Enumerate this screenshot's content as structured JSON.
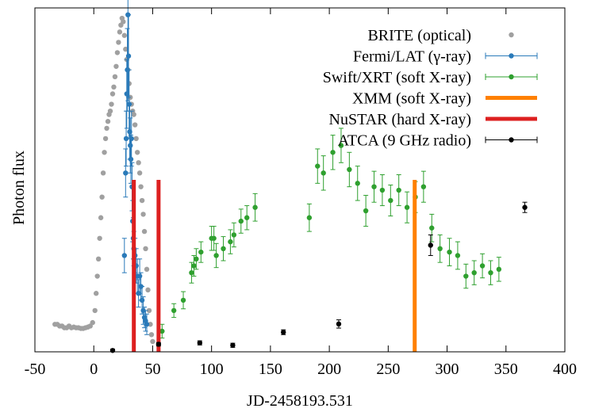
{
  "chart_data": {
    "type": "scatter",
    "xlabel": "JD-2458193.531",
    "ylabel": "Photon flux",
    "xlim": [
      -50,
      400
    ],
    "ylim": [
      0,
      1
    ],
    "xticks": [
      -50,
      0,
      50,
      100,
      150,
      200,
      250,
      300,
      350,
      400
    ],
    "yticks": [],
    "grid": false,
    "legend_position": "top-right",
    "series": [
      {
        "name": "BRITE (optical)",
        "kind": "points",
        "color": "#a0a0a0",
        "x": [
          -33,
          -31,
          -29,
          -27,
          -25,
          -23,
          -21,
          -19,
          -17,
          -15,
          -13,
          -11,
          -9,
          -7,
          -5,
          -3,
          -1,
          1,
          2,
          3,
          4,
          5,
          6,
          7,
          8,
          9,
          10,
          11,
          12,
          13,
          14,
          15,
          16,
          17,
          18,
          19,
          20,
          21,
          22,
          23,
          24,
          25,
          26,
          27,
          28,
          29,
          30,
          31,
          32,
          33,
          34,
          35,
          36,
          37,
          38,
          39,
          40,
          41,
          42,
          43,
          44,
          45,
          46,
          47,
          48,
          49,
          50
        ],
        "y": [
          0.08,
          0.08,
          0.075,
          0.075,
          0.07,
          0.07,
          0.075,
          0.07,
          0.072,
          0.07,
          0.07,
          0.068,
          0.068,
          0.07,
          0.072,
          0.075,
          0.085,
          0.12,
          0.17,
          0.22,
          0.27,
          0.33,
          0.39,
          0.45,
          0.52,
          0.58,
          0.62,
          0.65,
          0.67,
          0.69,
          0.7,
          0.72,
          0.75,
          0.77,
          0.8,
          0.83,
          0.87,
          0.9,
          0.93,
          0.95,
          0.97,
          0.96,
          0.92,
          0.88,
          0.85,
          0.82,
          0.78,
          0.74,
          0.72,
          0.7,
          0.69,
          0.66,
          0.62,
          0.58,
          0.55,
          0.52,
          0.48,
          0.44,
          0.4,
          0.35,
          0.3,
          0.24,
          0.18,
          0.12,
          0.08,
          0.05,
          0.03
        ]
      },
      {
        "name": "Fermi/LAT (γ-ray)",
        "kind": "errorbar",
        "color": "#2a7ab9",
        "x": [
          26,
          27,
          27.5,
          28,
          28.5,
          29,
          29.5,
          30,
          30.5,
          31,
          31.5,
          32,
          32.5,
          33,
          33.5,
          34,
          35,
          36,
          37,
          38,
          39,
          40,
          41,
          42,
          43,
          44,
          45
        ],
        "y": [
          0.28,
          0.52,
          0.62,
          0.75,
          0.82,
          0.98,
          0.86,
          0.72,
          0.64,
          0.6,
          0.56,
          0.62,
          0.48,
          0.38,
          0.33,
          0.3,
          0.28,
          0.25,
          0.22,
          0.17,
          0.22,
          0.19,
          0.15,
          0.12,
          0.1,
          0.09,
          0.08
        ],
        "yerr": [
          0.05,
          0.07,
          0.08,
          0.1,
          0.12,
          0.25,
          0.12,
          0.1,
          0.08,
          0.08,
          0.07,
          0.08,
          0.07,
          0.06,
          0.06,
          0.05,
          0.05,
          0.05,
          0.05,
          0.04,
          0.05,
          0.04,
          0.04,
          0.04,
          0.03,
          0.03,
          0.03
        ]
      },
      {
        "name": "Swift/XRT (soft X-ray)",
        "kind": "errorbar",
        "color": "#2fa02f",
        "x": [
          58,
          68,
          76,
          83,
          85,
          87,
          91,
          100,
          102,
          104,
          110,
          116,
          119,
          125,
          130,
          137,
          183,
          190,
          195,
          203,
          210,
          217,
          224,
          231,
          238,
          245,
          252,
          259,
          266,
          273,
          280,
          287,
          294,
          302,
          309,
          316,
          323,
          330,
          337,
          344
        ],
        "y": [
          0.06,
          0.12,
          0.15,
          0.23,
          0.25,
          0.27,
          0.29,
          0.33,
          0.33,
          0.28,
          0.3,
          0.32,
          0.34,
          0.38,
          0.39,
          0.42,
          0.39,
          0.54,
          0.52,
          0.58,
          0.6,
          0.53,
          0.49,
          0.41,
          0.48,
          0.47,
          0.44,
          0.47,
          0.42,
          0.45,
          0.48,
          0.36,
          0.3,
          0.29,
          0.28,
          0.22,
          0.23,
          0.25,
          0.23,
          0.24
        ],
        "yerr": [
          0.02,
          0.02,
          0.025,
          0.03,
          0.03,
          0.03,
          0.03,
          0.035,
          0.035,
          0.035,
          0.035,
          0.035,
          0.035,
          0.035,
          0.035,
          0.04,
          0.04,
          0.05,
          0.05,
          0.05,
          0.05,
          0.05,
          0.05,
          0.045,
          0.045,
          0.045,
          0.045,
          0.045,
          0.045,
          0.045,
          0.045,
          0.04,
          0.04,
          0.04,
          0.04,
          0.035,
          0.035,
          0.035,
          0.035,
          0.035
        ]
      },
      {
        "name": "XMM (soft X-ray)",
        "kind": "vline",
        "color": "#ff8000",
        "x": [
          272.5
        ],
        "ymax": 0.5
      },
      {
        "name": "NuSTAR (hard X-ray)",
        "kind": "vline",
        "color": "#dd2020",
        "x": [
          34,
          55
        ],
        "ymax": 0.5
      },
      {
        "name": "ATCA (9 GHz radio)",
        "kind": "errorbar",
        "color": "#000000",
        "x": [
          16,
          55,
          90,
          118,
          161,
          208,
          286,
          366
        ],
        "y": [
          0.004,
          0.022,
          0.026,
          0.019,
          0.057,
          0.081,
          0.31,
          0.42
        ],
        "yerr": [
          0.004,
          0.005,
          0.006,
          0.006,
          0.007,
          0.012,
          0.03,
          0.015
        ]
      }
    ]
  }
}
